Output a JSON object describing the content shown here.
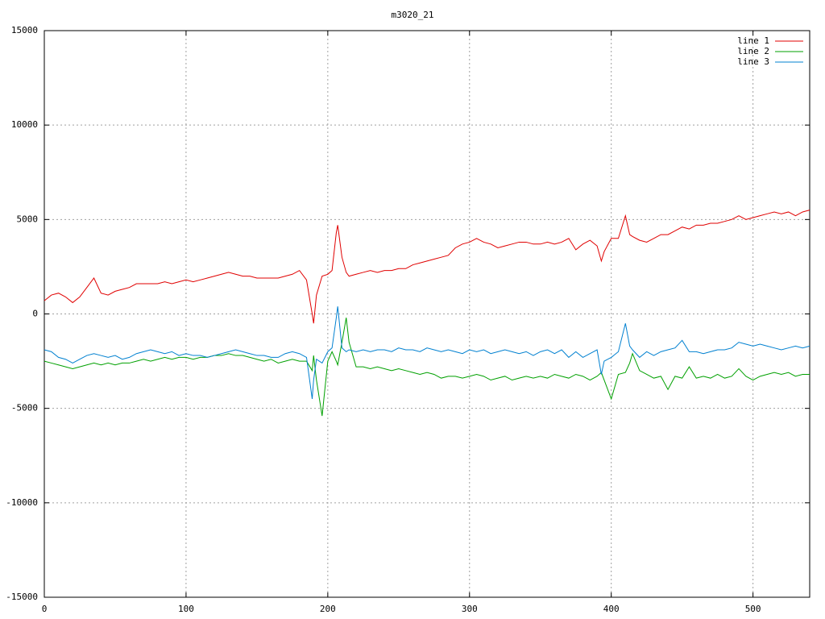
{
  "chart_data": {
    "type": "line",
    "title": "m3020_21",
    "x": [
      0,
      5,
      10,
      15,
      20,
      25,
      30,
      35,
      40,
      45,
      50,
      55,
      60,
      65,
      70,
      75,
      80,
      85,
      90,
      95,
      100,
      105,
      110,
      115,
      120,
      125,
      130,
      135,
      140,
      145,
      150,
      155,
      160,
      165,
      170,
      175,
      180,
      185,
      189,
      190,
      192,
      196,
      200,
      203,
      206,
      207,
      210,
      213,
      215,
      220,
      225,
      230,
      235,
      240,
      245,
      250,
      255,
      260,
      265,
      270,
      275,
      280,
      285,
      290,
      295,
      300,
      305,
      310,
      315,
      320,
      325,
      330,
      335,
      340,
      345,
      350,
      355,
      360,
      365,
      370,
      375,
      380,
      385,
      390,
      393,
      395,
      400,
      405,
      410,
      413,
      415,
      420,
      425,
      430,
      435,
      440,
      445,
      450,
      455,
      460,
      465,
      470,
      475,
      480,
      485,
      490,
      495,
      500,
      505,
      510,
      515,
      520,
      525,
      530,
      535,
      540
    ],
    "series": [
      {
        "name": "line 1",
        "color": "#e00000",
        "values": [
          700,
          1000,
          1100,
          900,
          600,
          900,
          1400,
          1900,
          1100,
          1000,
          1200,
          1300,
          1400,
          1600,
          1600,
          1600,
          1600,
          1700,
          1600,
          1700,
          1800,
          1700,
          1800,
          1900,
          2000,
          2100,
          2200,
          2100,
          2000,
          2000,
          1900,
          1900,
          1900,
          1900,
          2000,
          2100,
          2300,
          1800,
          0,
          -500,
          1000,
          2000,
          2100,
          2300,
          4300,
          4700,
          3000,
          2200,
          2000,
          2100,
          2200,
          2300,
          2200,
          2300,
          2300,
          2400,
          2400,
          2600,
          2700,
          2800,
          2900,
          3000,
          3100,
          3500,
          3700,
          3800,
          4000,
          3800,
          3700,
          3500,
          3600,
          3700,
          3800,
          3800,
          3700,
          3700,
          3800,
          3700,
          3800,
          4000,
          3400,
          3700,
          3900,
          3600,
          2800,
          3300,
          4000,
          4000,
          5200,
          4200,
          4100,
          3900,
          3800,
          4000,
          4200,
          4200,
          4400,
          4600,
          4500,
          4700,
          4700,
          4800,
          4800,
          4900,
          5000,
          5200,
          5000,
          5100,
          5200,
          5300,
          5400,
          5300,
          5400,
          5200,
          5400,
          5500
        ]
      },
      {
        "name": "line 2",
        "color": "#00a000",
        "values": [
          -2500,
          -2600,
          -2700,
          -2800,
          -2900,
          -2800,
          -2700,
          -2600,
          -2700,
          -2600,
          -2700,
          -2600,
          -2600,
          -2500,
          -2400,
          -2500,
          -2400,
          -2300,
          -2400,
          -2300,
          -2300,
          -2400,
          -2300,
          -2300,
          -2200,
          -2200,
          -2100,
          -2200,
          -2200,
          -2300,
          -2400,
          -2500,
          -2400,
          -2600,
          -2500,
          -2400,
          -2500,
          -2500,
          -3000,
          -2200,
          -3500,
          -5400,
          -2500,
          -2000,
          -2500,
          -2700,
          -1500,
          -200,
          -1500,
          -2800,
          -2800,
          -2900,
          -2800,
          -2900,
          -3000,
          -2900,
          -3000,
          -3100,
          -3200,
          -3100,
          -3200,
          -3400,
          -3300,
          -3300,
          -3400,
          -3300,
          -3200,
          -3300,
          -3500,
          -3400,
          -3300,
          -3500,
          -3400,
          -3300,
          -3400,
          -3300,
          -3400,
          -3200,
          -3300,
          -3400,
          -3200,
          -3300,
          -3500,
          -3300,
          -3100,
          -3500,
          -4500,
          -3200,
          -3100,
          -2600,
          -2100,
          -3000,
          -3200,
          -3400,
          -3300,
          -4000,
          -3300,
          -3400,
          -2800,
          -3400,
          -3300,
          -3400,
          -3200,
          -3400,
          -3300,
          -2900,
          -3300,
          -3500,
          -3300,
          -3200,
          -3100,
          -3200,
          -3100,
          -3300,
          -3200,
          -3200
        ]
      },
      {
        "name": "line 3",
        "color": "#0080d0",
        "values": [
          -1900,
          -2000,
          -2300,
          -2400,
          -2600,
          -2400,
          -2200,
          -2100,
          -2200,
          -2300,
          -2200,
          -2400,
          -2300,
          -2100,
          -2000,
          -1900,
          -2000,
          -2100,
          -2000,
          -2200,
          -2100,
          -2200,
          -2200,
          -2300,
          -2200,
          -2100,
          -2000,
          -1900,
          -2000,
          -2100,
          -2200,
          -2200,
          -2300,
          -2300,
          -2100,
          -2000,
          -2100,
          -2300,
          -4500,
          -3500,
          -2400,
          -2600,
          -2000,
          -1800,
          -200,
          400,
          -1800,
          -2000,
          -1900,
          -2000,
          -1900,
          -2000,
          -1900,
          -1900,
          -2000,
          -1800,
          -1900,
          -1900,
          -2000,
          -1800,
          -1900,
          -2000,
          -1900,
          -2000,
          -2100,
          -1900,
          -2000,
          -1900,
          -2100,
          -2000,
          -1900,
          -2000,
          -2100,
          -2000,
          -2200,
          -2000,
          -1900,
          -2100,
          -1900,
          -2300,
          -2000,
          -2300,
          -2100,
          -1900,
          -3200,
          -2500,
          -2300,
          -2000,
          -500,
          -1700,
          -1900,
          -2300,
          -2000,
          -2200,
          -2000,
          -1900,
          -1800,
          -1400,
          -2000,
          -2000,
          -2100,
          -2000,
          -1900,
          -1900,
          -1800,
          -1500,
          -1600,
          -1700,
          -1600,
          -1700,
          -1800,
          -1900,
          -1800,
          -1700,
          -1800,
          -1700
        ]
      }
    ],
    "xlim": [
      0,
      540
    ],
    "ylim": [
      -15000,
      15000
    ],
    "xticks": [
      0,
      100,
      200,
      300,
      400,
      500
    ],
    "yticks": [
      -15000,
      -10000,
      -5000,
      0,
      5000,
      10000,
      15000
    ],
    "grid": true,
    "legend": "top-right"
  }
}
